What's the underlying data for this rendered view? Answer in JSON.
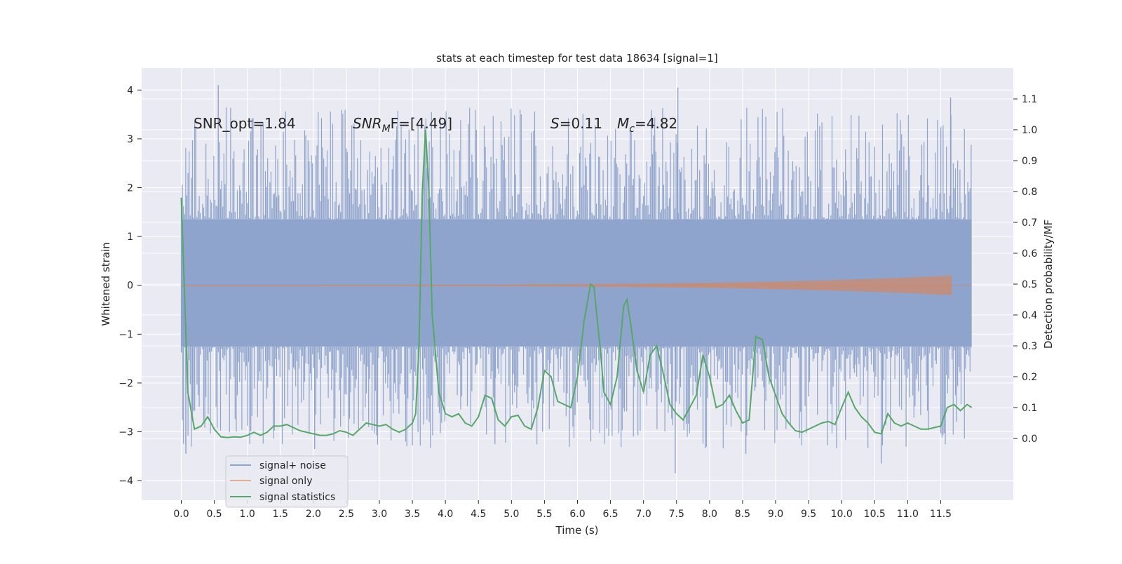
{
  "chart_data": {
    "type": "line",
    "title": "stats at each timestep for test data 18634 [signal=1]",
    "xlabel": "Time (s)",
    "ylabel_left": "Whitened strain",
    "ylabel_right": "Detection probability/MF",
    "xlim": [
      -0.6,
      12.6
    ],
    "ylim_left": [
      -4.4,
      4.45
    ],
    "ylim_right": [
      -0.2,
      1.2
    ],
    "x_ticks": [
      0.0,
      0.5,
      1.0,
      1.5,
      2.0,
      2.5,
      3.0,
      3.5,
      4.0,
      4.5,
      5.0,
      5.5,
      6.0,
      6.5,
      7.0,
      7.5,
      8.0,
      8.5,
      9.0,
      9.5,
      10.0,
      10.5,
      11.0,
      11.5
    ],
    "x_tick_labels": [
      "0.0",
      "0.5",
      "1.0",
      "1.5",
      "2.0",
      "2.5",
      "3.0",
      "3.5",
      "4.0",
      "4.5",
      "5.0",
      "5.5",
      "6.0",
      "6.5",
      "7.0",
      "7.5",
      "8.0",
      "8.5",
      "9.0",
      "9.5",
      "10.0",
      "10.5",
      "11.0",
      "11.5"
    ],
    "y_left_ticks": [
      4,
      3,
      2,
      1,
      0,
      -1,
      -2,
      -3,
      -4
    ],
    "y_left_tick_labels": [
      "4",
      "3",
      "2",
      "1",
      "0",
      "−1",
      "−2",
      "−3",
      "−4"
    ],
    "y_right_ticks": [
      1.1,
      1.0,
      0.9,
      0.8,
      0.7,
      0.6,
      0.5,
      0.4,
      0.3,
      0.2,
      0.1,
      0.0
    ],
    "y_right_tick_labels": [
      "1.1",
      "1.0",
      "0.9",
      "0.8",
      "0.7",
      "0.6",
      "0.5",
      "0.4",
      "0.3",
      "0.2",
      "0.1",
      "0.0"
    ],
    "annotations": {
      "snr_opt": "SNR_opt=1.84",
      "snr_mf_sym": "SNR",
      "snr_mf_sub": "M",
      "snr_mf_rest": "F=[4.49]",
      "s_sym": "S",
      "s_rest": "=0.11",
      "mc_sym": "M",
      "mc_sub": "c",
      "mc_rest": "=4.82"
    },
    "legend": {
      "placement": "lower-left",
      "entries": [
        "signal+ noise",
        "signal only",
        "signal statistics"
      ]
    },
    "colors": {
      "noise": "#8fa4cc",
      "signal": "#dd8452",
      "stat": "#55a868",
      "background": "#eaeaf2",
      "grid": "#ffffff"
    },
    "series": [
      {
        "name": "signal+ noise",
        "axis": "left",
        "x_range": [
          0.0,
          11.97
        ],
        "core_band": [
          -1.25,
          1.35
        ],
        "typical_band": [
          -2.4,
          2.5
        ],
        "extremes": [
          {
            "x": 0.56,
            "y": 4.1
          },
          {
            "x": 7.52,
            "y": 4.05
          },
          {
            "x": 11.65,
            "y": 3.85
          },
          {
            "x": 7.48,
            "y": -3.85
          },
          {
            "x": 8.55,
            "y": -3.45
          },
          {
            "x": 0.07,
            "y": -3.45
          },
          {
            "x": 2.02,
            "y": -3.35
          },
          {
            "x": 10.6,
            "y": -3.65
          },
          {
            "x": 4.75,
            "y": -3.25
          }
        ]
      },
      {
        "name": "signal only",
        "axis": "left",
        "x_range": [
          0.0,
          11.67
        ],
        "amplitude_start": 0.01,
        "amplitude_end": 0.2
      },
      {
        "name": "signal statistics",
        "axis": "right",
        "x": [
          0.0,
          0.1,
          0.2,
          0.3,
          0.4,
          0.5,
          0.6,
          0.7,
          0.8,
          0.9,
          1.0,
          1.1,
          1.2,
          1.3,
          1.4,
          1.5,
          1.6,
          1.7,
          1.8,
          1.9,
          2.0,
          2.1,
          2.2,
          2.3,
          2.4,
          2.5,
          2.6,
          2.7,
          2.8,
          2.9,
          3.0,
          3.1,
          3.2,
          3.3,
          3.4,
          3.5,
          3.55,
          3.6,
          3.65,
          3.7,
          3.75,
          3.8,
          3.9,
          4.0,
          4.1,
          4.2,
          4.3,
          4.4,
          4.5,
          4.6,
          4.7,
          4.8,
          4.9,
          5.0,
          5.1,
          5.2,
          5.3,
          5.4,
          5.5,
          5.6,
          5.7,
          5.8,
          5.9,
          6.0,
          6.1,
          6.2,
          6.25,
          6.35,
          6.4,
          6.5,
          6.6,
          6.7,
          6.75,
          6.8,
          6.9,
          7.0,
          7.1,
          7.2,
          7.3,
          7.4,
          7.5,
          7.6,
          7.7,
          7.8,
          7.9,
          8.0,
          8.1,
          8.2,
          8.3,
          8.4,
          8.5,
          8.6,
          8.7,
          8.8,
          8.9,
          9.0,
          9.1,
          9.2,
          9.3,
          9.4,
          9.5,
          9.6,
          9.7,
          9.8,
          9.9,
          10.0,
          10.1,
          10.2,
          10.3,
          10.4,
          10.5,
          10.6,
          10.7,
          10.8,
          10.9,
          11.0,
          11.1,
          11.2,
          11.3,
          11.4,
          11.5,
          11.6,
          11.7,
          11.8,
          11.9,
          11.97
        ],
        "values": [
          0.78,
          0.15,
          0.03,
          0.04,
          0.07,
          0.03,
          0.005,
          0.003,
          0.005,
          0.004,
          0.01,
          0.02,
          0.01,
          0.02,
          0.04,
          0.04,
          0.045,
          0.035,
          0.025,
          0.02,
          0.015,
          0.01,
          0.01,
          0.015,
          0.025,
          0.02,
          0.01,
          0.03,
          0.05,
          0.045,
          0.04,
          0.045,
          0.03,
          0.02,
          0.03,
          0.05,
          0.08,
          0.3,
          0.8,
          1.0,
          0.8,
          0.4,
          0.15,
          0.08,
          0.07,
          0.08,
          0.05,
          0.04,
          0.07,
          0.14,
          0.13,
          0.06,
          0.04,
          0.07,
          0.075,
          0.04,
          0.03,
          0.1,
          0.22,
          0.2,
          0.12,
          0.11,
          0.1,
          0.2,
          0.38,
          0.5,
          0.49,
          0.28,
          0.15,
          0.11,
          0.2,
          0.43,
          0.45,
          0.38,
          0.22,
          0.15,
          0.27,
          0.3,
          0.21,
          0.11,
          0.08,
          0.06,
          0.1,
          0.14,
          0.27,
          0.2,
          0.1,
          0.11,
          0.14,
          0.09,
          0.05,
          0.06,
          0.33,
          0.32,
          0.2,
          0.14,
          0.08,
          0.05,
          0.025,
          0.02,
          0.03,
          0.04,
          0.05,
          0.055,
          0.045,
          0.1,
          0.15,
          0.1,
          0.07,
          0.05,
          0.02,
          0.015,
          0.08,
          0.05,
          0.04,
          0.05,
          0.04,
          0.03,
          0.03,
          0.035,
          0.04,
          0.1,
          0.11,
          0.09,
          0.11,
          0.1
        ]
      }
    ]
  }
}
